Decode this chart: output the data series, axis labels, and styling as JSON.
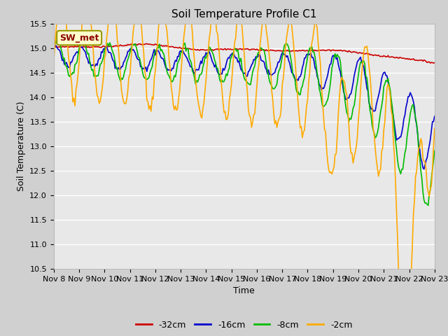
{
  "title": "Soil Temperature Profile C1",
  "xlabel": "Time",
  "ylabel": "Soil Temperature (C)",
  "ylim": [
    10.5,
    15.5
  ],
  "xlim": [
    0,
    360
  ],
  "fig_bg_color": "#d0d0d0",
  "plot_bg_color": "#e8e8e8",
  "legend_labels": [
    "-32cm",
    "-16cm",
    "-8cm",
    "-2cm"
  ],
  "legend_colors": [
    "#cc0000",
    "#0000cc",
    "#00bb00",
    "#ffaa00"
  ],
  "annotation_text": "SW_met",
  "annotation_color": "#8b0000",
  "annotation_bg": "#ffffcc",
  "x_tick_labels": [
    "Nov 8",
    "Nov 9",
    "Nov 10",
    "Nov 11",
    "Nov 12",
    "Nov 13",
    "Nov 14",
    "Nov 15",
    "Nov 16",
    "Nov 17",
    "Nov 18",
    "Nov 19",
    "Nov 20",
    "Nov 21",
    "Nov 22",
    "Nov 23"
  ],
  "x_tick_positions": [
    0,
    24,
    48,
    72,
    96,
    120,
    144,
    168,
    192,
    216,
    240,
    264,
    288,
    312,
    336,
    360
  ],
  "yticks": [
    10.5,
    11.0,
    11.5,
    12.0,
    12.5,
    13.0,
    13.5,
    14.0,
    14.5,
    15.0,
    15.5
  ]
}
